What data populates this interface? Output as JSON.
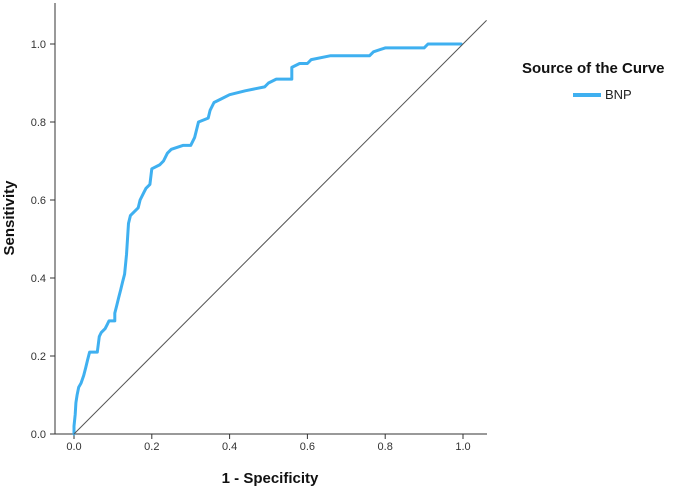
{
  "chart_data": {
    "type": "line",
    "xlabel": "1 - Specificity",
    "ylabel": "Sensitivity",
    "xlim": [
      0,
      1.0
    ],
    "ylim": [
      0,
      1.0
    ],
    "x_ticks": [
      "0.0",
      "0.2",
      "0.4",
      "0.6",
      "0.8",
      "1.0"
    ],
    "y_ticks": [
      "0.0",
      "0.2",
      "0.4",
      "0.6",
      "0.8",
      "1.0"
    ],
    "grid": false,
    "legend": {
      "title": "Source of the Curve",
      "placement": "right"
    },
    "series": [
      {
        "name": "BNP",
        "color": "#3fb0f0",
        "points": [
          [
            0.0,
            0.0
          ],
          [
            0.0,
            0.02
          ],
          [
            0.003,
            0.05
          ],
          [
            0.005,
            0.08
          ],
          [
            0.008,
            0.1
          ],
          [
            0.012,
            0.12
          ],
          [
            0.018,
            0.13
          ],
          [
            0.025,
            0.15
          ],
          [
            0.03,
            0.17
          ],
          [
            0.035,
            0.19
          ],
          [
            0.04,
            0.21
          ],
          [
            0.06,
            0.21
          ],
          [
            0.065,
            0.25
          ],
          [
            0.07,
            0.26
          ],
          [
            0.08,
            0.27
          ],
          [
            0.085,
            0.28
          ],
          [
            0.09,
            0.29
          ],
          [
            0.105,
            0.29
          ],
          [
            0.105,
            0.31
          ],
          [
            0.11,
            0.33
          ],
          [
            0.115,
            0.35
          ],
          [
            0.12,
            0.37
          ],
          [
            0.125,
            0.39
          ],
          [
            0.13,
            0.41
          ],
          [
            0.135,
            0.46
          ],
          [
            0.14,
            0.54
          ],
          [
            0.145,
            0.56
          ],
          [
            0.155,
            0.57
          ],
          [
            0.165,
            0.58
          ],
          [
            0.17,
            0.6
          ],
          [
            0.18,
            0.62
          ],
          [
            0.185,
            0.63
          ],
          [
            0.195,
            0.64
          ],
          [
            0.2,
            0.68
          ],
          [
            0.22,
            0.69
          ],
          [
            0.23,
            0.7
          ],
          [
            0.24,
            0.72
          ],
          [
            0.25,
            0.73
          ],
          [
            0.28,
            0.74
          ],
          [
            0.3,
            0.74
          ],
          [
            0.31,
            0.76
          ],
          [
            0.32,
            0.8
          ],
          [
            0.345,
            0.81
          ],
          [
            0.35,
            0.83
          ],
          [
            0.36,
            0.85
          ],
          [
            0.38,
            0.86
          ],
          [
            0.4,
            0.87
          ],
          [
            0.44,
            0.88
          ],
          [
            0.49,
            0.89
          ],
          [
            0.5,
            0.9
          ],
          [
            0.52,
            0.91
          ],
          [
            0.56,
            0.91
          ],
          [
            0.56,
            0.94
          ],
          [
            0.58,
            0.95
          ],
          [
            0.6,
            0.95
          ],
          [
            0.61,
            0.96
          ],
          [
            0.66,
            0.97
          ],
          [
            0.76,
            0.97
          ],
          [
            0.77,
            0.98
          ],
          [
            0.8,
            0.99
          ],
          [
            0.9,
            0.99
          ],
          [
            0.91,
            1.0
          ],
          [
            0.995,
            1.0
          ]
        ]
      },
      {
        "name": "Reference Line",
        "color": "#555555",
        "points": [
          [
            0.0,
            0.0
          ],
          [
            1.06,
            1.06
          ]
        ]
      }
    ]
  }
}
